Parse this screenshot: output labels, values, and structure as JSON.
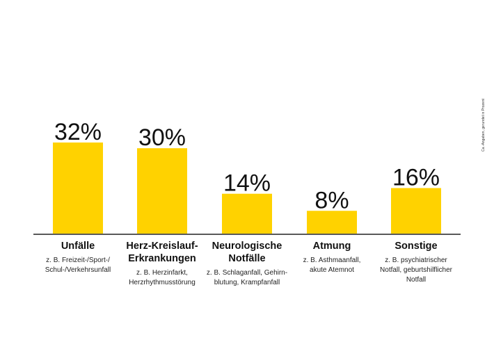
{
  "chart_data": {
    "type": "bar",
    "categories": [
      "Unfälle",
      "Herz-Kreislauf-\nErkrankungen",
      "Neurologische\nNotfälle",
      "Atmung",
      "Sonstige"
    ],
    "category_details": [
      "z. B. Freizeit-/Sport-/\nSchul-/Verkehrsunfall",
      "z. B. Herzinfarkt,\nHerzrhythmusstörung",
      "z. B. Schlaganfall, Gehirn-\nblutung, Krampfanfall",
      "z. B. Asthmaanfall,\nakute Atemnot",
      "z. B. psychiatrischer\nNotfall, geburtshilflicher\nNotfall"
    ],
    "values": [
      32,
      30,
      14,
      8,
      16
    ],
    "value_labels": [
      "32%",
      "30%",
      "14%",
      "8%",
      "16%"
    ],
    "ylim": [
      0,
      32
    ],
    "grid": false,
    "legend": "none",
    "note": "Ca.-Angaben, gerundet in Prozent",
    "bar_color": "#FFD200",
    "axis_color": "#222222"
  }
}
